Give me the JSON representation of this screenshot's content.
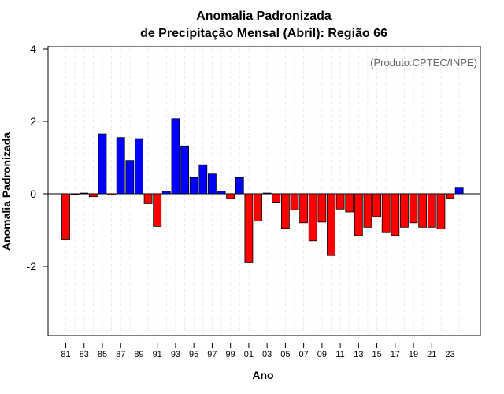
{
  "chart_data": {
    "type": "bar",
    "title_line1": "Anomalia Padronizada",
    "title_line2": "de Precipitação Mensal (Abril): Região 66",
    "xlabel": "Ano",
    "ylabel": "Anomalia Padronizada",
    "credit": "(Produto:CPTEC/INPE)",
    "ylim": [
      -4,
      4.1
    ],
    "yticks": [
      4,
      2,
      0,
      -2
    ],
    "ytick_labels": [
      "4",
      "2",
      "0",
      "-2"
    ],
    "grid": "vertical dotted",
    "positive_color": "#0000ff",
    "negative_color": "#ff0000",
    "categories": [
      "81",
      "82",
      "83",
      "84",
      "85",
      "86",
      "87",
      "88",
      "89",
      "90",
      "91",
      "92",
      "93",
      "94",
      "95",
      "96",
      "97",
      "98",
      "99",
      "00",
      "01",
      "02",
      "03",
      "04",
      "05",
      "06",
      "07",
      "08",
      "09",
      "10",
      "11",
      "12",
      "13",
      "14",
      "15",
      "16",
      "17",
      "18",
      "19",
      "20",
      "21",
      "22",
      "23",
      "24"
    ],
    "xtick_labels": [
      "81",
      "83",
      "85",
      "87",
      "89",
      "91",
      "93",
      "95",
      "97",
      "99",
      "01",
      "03",
      "05",
      "07",
      "09",
      "11",
      "13",
      "15",
      "17",
      "19",
      "21",
      "23"
    ],
    "values": [
      -1.25,
      -0.02,
      0.02,
      -0.08,
      1.65,
      -0.03,
      1.55,
      0.92,
      1.52,
      -0.27,
      -0.9,
      0.07,
      2.07,
      1.32,
      0.45,
      0.8,
      0.55,
      0.07,
      -0.13,
      0.45,
      -1.9,
      -0.75,
      0.02,
      -0.23,
      -0.95,
      -0.44,
      -0.8,
      -1.3,
      -0.78,
      -1.7,
      -0.42,
      -0.5,
      -1.15,
      -0.92,
      -0.63,
      -1.07,
      -1.15,
      -0.92,
      -0.8,
      -0.92,
      -0.92,
      -0.97,
      -0.12,
      0.18
    ]
  }
}
